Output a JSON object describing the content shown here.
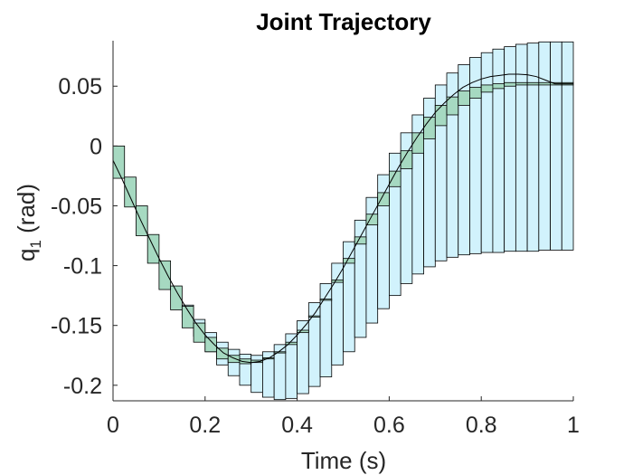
{
  "chart_data": {
    "type": "line",
    "title": "Joint Trajectory",
    "xlabel": "Time (s)",
    "ylabel": {
      "base": "q",
      "subscript": "1",
      "rest": " (rad)"
    },
    "xlim": [
      0,
      1
    ],
    "ylim": [
      -0.213,
      0.088
    ],
    "xticks": [
      0,
      0.2,
      0.4,
      0.6,
      0.8,
      1
    ],
    "xtick_labels": [
      "0",
      "0.2",
      "0.4",
      "0.6",
      "0.8",
      "1"
    ],
    "yticks": [
      0.05,
      0,
      -0.05,
      -0.1,
      -0.15,
      -0.2
    ],
    "ytick_labels": [
      "0.05",
      "0",
      "-0.05",
      "-0.1",
      "-0.15",
      "-0.2"
    ],
    "grid": false,
    "colors": {
      "trajectory": "#000000",
      "inner_boxes": "#a6d9c1",
      "outer_boxes": "#d1f2fc",
      "box_edge": "#000000"
    },
    "series": [
      {
        "role": "trajectory-line",
        "x": [
          0,
          0.02,
          0.04,
          0.06,
          0.08,
          0.1,
          0.12,
          0.14,
          0.16,
          0.18,
          0.2,
          0.22,
          0.24,
          0.26,
          0.28,
          0.3,
          0.32,
          0.34,
          0.36,
          0.38,
          0.4,
          0.42,
          0.44,
          0.46,
          0.48,
          0.5,
          0.52,
          0.54,
          0.56,
          0.58,
          0.6,
          0.62,
          0.64,
          0.66,
          0.68,
          0.7,
          0.72,
          0.74,
          0.76,
          0.78,
          0.8,
          0.82,
          0.84,
          0.86,
          0.88,
          0.9,
          0.92,
          0.94,
          0.96,
          0.98,
          1.0
        ],
        "y": [
          -0.012,
          -0.028,
          -0.045,
          -0.062,
          -0.078,
          -0.094,
          -0.109,
          -0.123,
          -0.136,
          -0.148,
          -0.158,
          -0.166,
          -0.173,
          -0.177,
          -0.18,
          -0.181,
          -0.18,
          -0.177,
          -0.172,
          -0.166,
          -0.158,
          -0.149,
          -0.139,
          -0.127,
          -0.115,
          -0.102,
          -0.088,
          -0.074,
          -0.06,
          -0.046,
          -0.032,
          -0.018,
          -0.005,
          0.007,
          0.018,
          0.028,
          0.036,
          0.043,
          0.049,
          0.053,
          0.056,
          0.058,
          0.059,
          0.06,
          0.06,
          0.0595,
          0.058,
          0.055,
          0.052,
          0.052,
          0.052
        ]
      },
      {
        "role": "inner-interval-boxes",
        "x_start": [
          0,
          0.025,
          0.05,
          0.075,
          0.1,
          0.125,
          0.15,
          0.175,
          0.2,
          0.225,
          0.25,
          0.275,
          0.3,
          0.325,
          0.35,
          0.375,
          0.4,
          0.425,
          0.45,
          0.475,
          0.5,
          0.525,
          0.55,
          0.575,
          0.6,
          0.625,
          0.65,
          0.675,
          0.7,
          0.725,
          0.75,
          0.775,
          0.8,
          0.825,
          0.85,
          0.875,
          0.9,
          0.925,
          0.95,
          0.975
        ],
        "width": 0.025,
        "y_low": [
          -0.027,
          -0.051,
          -0.075,
          -0.098,
          -0.12,
          -0.137,
          -0.152,
          -0.164,
          -0.172,
          -0.178,
          -0.181,
          -0.182,
          -0.181,
          -0.178,
          -0.172,
          -0.164,
          -0.154,
          -0.142,
          -0.129,
          -0.114,
          -0.098,
          -0.082,
          -0.066,
          -0.05,
          -0.034,
          -0.019,
          -0.006,
          0.006,
          0.017,
          0.026,
          0.034,
          0.04,
          0.045,
          0.048,
          0.05,
          0.051,
          0.051,
          0.051,
          0.051,
          0.051
        ],
        "y_high": [
          0.0,
          -0.026,
          -0.05,
          -0.074,
          -0.096,
          -0.117,
          -0.134,
          -0.148,
          -0.16,
          -0.169,
          -0.175,
          -0.178,
          -0.179,
          -0.177,
          -0.173,
          -0.166,
          -0.156,
          -0.143,
          -0.128,
          -0.112,
          -0.094,
          -0.076,
          -0.057,
          -0.039,
          -0.021,
          -0.004,
          0.011,
          0.024,
          0.034,
          0.041,
          0.046,
          0.049,
          0.051,
          0.052,
          0.053,
          0.053,
          0.053,
          0.053,
          0.053,
          0.053
        ]
      },
      {
        "role": "outer-interval-boxes",
        "x_start": [
          0.15,
          0.175,
          0.2,
          0.225,
          0.25,
          0.275,
          0.3,
          0.325,
          0.35,
          0.375,
          0.4,
          0.425,
          0.45,
          0.475,
          0.5,
          0.525,
          0.55,
          0.575,
          0.6,
          0.625,
          0.65,
          0.675,
          0.7,
          0.725,
          0.75,
          0.775,
          0.8,
          0.825,
          0.85,
          0.875,
          0.9,
          0.925,
          0.95,
          0.975
        ],
        "width": 0.025,
        "y_low": [
          -0.143,
          -0.159,
          -0.172,
          -0.183,
          -0.192,
          -0.2,
          -0.206,
          -0.21,
          -0.212,
          -0.211,
          -0.207,
          -0.201,
          -0.193,
          -0.183,
          -0.172,
          -0.16,
          -0.148,
          -0.136,
          -0.125,
          -0.115,
          -0.107,
          -0.101,
          -0.096,
          -0.093,
          -0.091,
          -0.09,
          -0.089,
          -0.089,
          -0.088,
          -0.088,
          -0.088,
          -0.087,
          -0.087,
          -0.087
        ],
        "y_high": [
          -0.133,
          -0.145,
          -0.156,
          -0.164,
          -0.17,
          -0.174,
          -0.175,
          -0.172,
          -0.166,
          -0.157,
          -0.146,
          -0.131,
          -0.115,
          -0.098,
          -0.08,
          -0.062,
          -0.043,
          -0.024,
          -0.006,
          0.011,
          0.026,
          0.04,
          0.051,
          0.061,
          0.068,
          0.074,
          0.078,
          0.081,
          0.083,
          0.085,
          0.086,
          0.087,
          0.087,
          0.087
        ]
      }
    ]
  }
}
